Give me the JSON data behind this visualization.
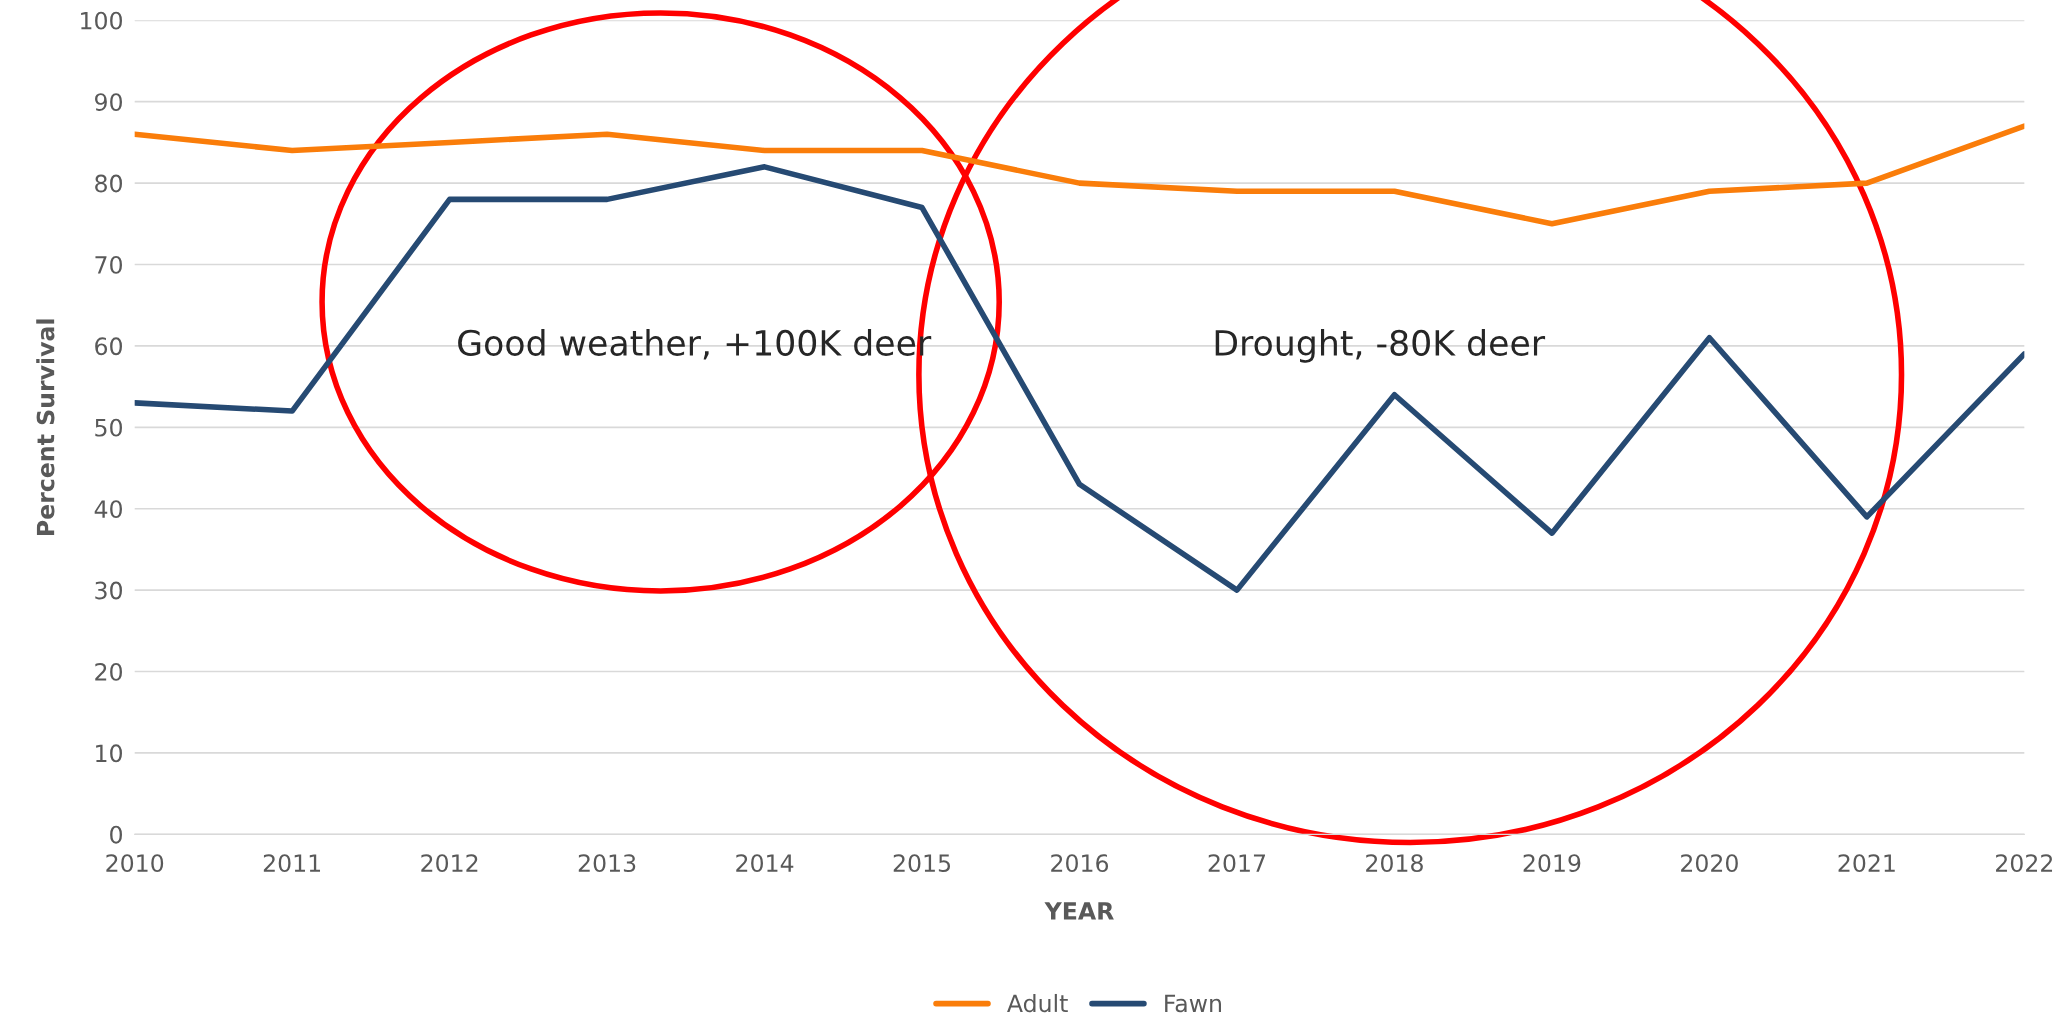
{
  "chart_data": {
    "type": "line",
    "xlabel": "YEAR",
    "ylabel": "Percent Survival",
    "x": [
      2010,
      2011,
      2012,
      2013,
      2014,
      2015,
      2016,
      2017,
      2018,
      2019,
      2020,
      2021,
      2022
    ],
    "series": [
      {
        "name": "Adult",
        "color": "#fa7d0a",
        "values": [
          86,
          84,
          85,
          86,
          84,
          84,
          80,
          79,
          79,
          75,
          79,
          80,
          87
        ]
      },
      {
        "name": "Fawn",
        "color": "#264a73",
        "values": [
          53,
          52,
          78,
          78,
          82,
          77,
          43,
          30,
          54,
          37,
          61,
          39,
          59
        ]
      }
    ],
    "xlim": [
      2010,
      2022
    ],
    "xticks": [
      2010,
      2011,
      2012,
      2013,
      2014,
      2015,
      2016,
      2017,
      2018,
      2019,
      2020,
      2021,
      2022
    ],
    "ylim": [
      0,
      100
    ],
    "yticks": [
      0,
      10,
      20,
      30,
      40,
      50,
      60,
      70,
      80,
      90,
      100
    ],
    "grid": "y",
    "legend": "bottom",
    "marker": "none",
    "line_style": "solid",
    "annotations": [
      "Good weather, +100K deer",
      "Drought, -80K deer"
    ]
  }
}
